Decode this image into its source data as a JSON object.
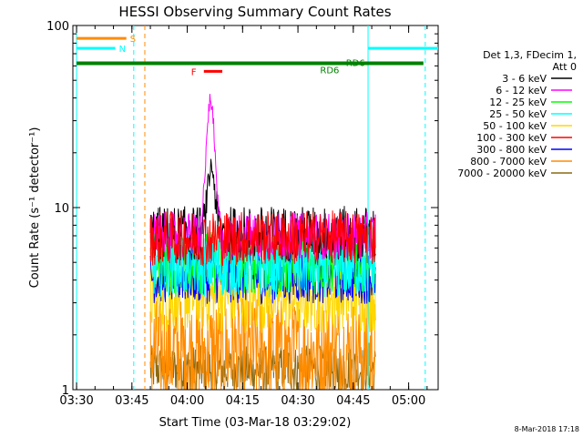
{
  "chart_data": {
    "type": "line",
    "title": "HESSI Observing Summary Count Rates",
    "xlabel": "Start Time (03-Mar-18 03:29:02)",
    "ylabel": "Count Rate (s⁻¹ detector⁻¹)",
    "y_scale": "log",
    "ylim": [
      1,
      100
    ],
    "xlim_minutes_after_0329": [
      0,
      99
    ],
    "x_ticks": [
      {
        "label": "03:30",
        "min": 1
      },
      {
        "label": "03:45",
        "min": 16
      },
      {
        "label": "04:00",
        "min": 31
      },
      {
        "label": "04:15",
        "min": 46
      },
      {
        "label": "04:30",
        "min": 61
      },
      {
        "label": "04:45",
        "min": 76
      },
      {
        "label": "05:00",
        "min": 91
      }
    ],
    "y_ticks": [
      {
        "label": "1",
        "value": 1
      },
      {
        "label": "10",
        "value": 10
      },
      {
        "label": "100",
        "value": 100
      }
    ],
    "legend_header": [
      "Det 1,3, FDecim 1,",
      "Att 0"
    ],
    "legend_placement": "right",
    "data_span_minutes": [
      21,
      82
    ],
    "series": [
      {
        "name": "3 - 6 keV",
        "color": "#000000",
        "base": 7.2,
        "spread": 0.35,
        "peak_time": 37.5,
        "peak": 17
      },
      {
        "name": "6 - 12 keV",
        "color": "#ff00ff",
        "base": 7.0,
        "spread": 0.3,
        "peak_time": 37.3,
        "peak": 42
      },
      {
        "name": "12 - 25 keV",
        "color": "#00ff00",
        "base": 5.0,
        "spread": 0.4
      },
      {
        "name": "25 - 50 keV",
        "color": "#00ffff",
        "base": 4.8,
        "spread": 0.4
      },
      {
        "name": "50 - 100 keV",
        "color": "#ffd700",
        "base": 3.2,
        "spread": 0.45
      },
      {
        "name": "100 - 300 keV",
        "color": "#ff0000",
        "base": 6.8,
        "spread": 0.35
      },
      {
        "name": "300 - 800 keV",
        "color": "#0000ff",
        "base": 4.2,
        "spread": 0.35
      },
      {
        "name": "800 - 7000 keV",
        "color": "#ff8c00",
        "base": 1.6,
        "spread": 0.7
      },
      {
        "name": "7000 - 20000 keV",
        "color": "#8b6914",
        "base": 1.3,
        "spread": 0.3
      }
    ],
    "flag_bars": [
      {
        "label": "S",
        "color": "#ff8c00",
        "y": 85,
        "start": 1,
        "end": 14.5
      },
      {
        "label": "N",
        "color": "#00ffff",
        "y": 75,
        "start": 1,
        "end": 11.5
      },
      {
        "label": "N",
        "color": "#00ffff",
        "y": 75,
        "start": 80,
        "end": 99
      },
      {
        "label": "F",
        "color": "#ff0000",
        "y": 56,
        "start": 35.5,
        "end": 40.5
      }
    ],
    "rd_bars": [
      {
        "label": "RD6",
        "color": "#008000",
        "y": 62,
        "start": 1,
        "end": 95
      }
    ],
    "rd_extra_label": "RD6",
    "verticals": [
      {
        "min": 1,
        "color": "#00ffff",
        "style": "solid"
      },
      {
        "min": 16.5,
        "color": "#00ffff",
        "style": "dashed"
      },
      {
        "min": 19.5,
        "color": "#ff8c00",
        "style": "dashed"
      },
      {
        "min": 80,
        "color": "#00ffff",
        "style": "solid"
      },
      {
        "min": 95.5,
        "color": "#00ffff",
        "style": "dashed"
      }
    ]
  },
  "footer_timestamp": "8-Mar-2018 17:18"
}
